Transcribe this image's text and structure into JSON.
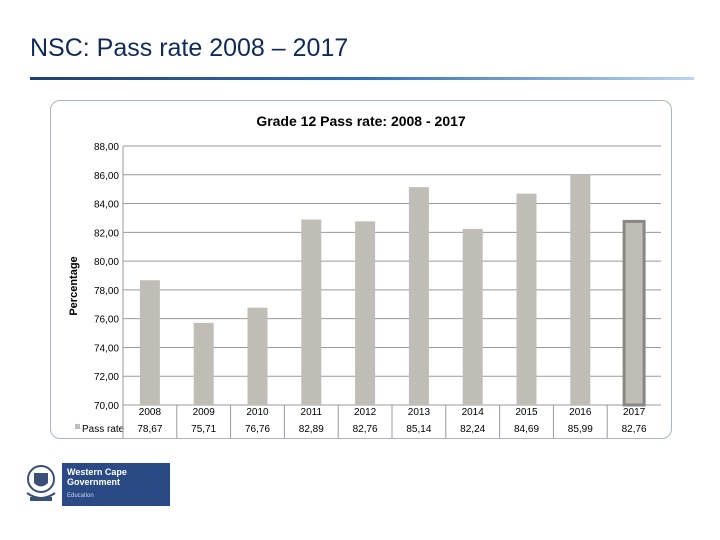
{
  "slide": {
    "title": "NSC: Pass rate 2008 – 2017"
  },
  "logo": {
    "line1": "Western Cape",
    "line2": "Government",
    "line3": "Education"
  },
  "colors": {
    "bar": "#c0bcb6",
    "highlight_border": "#8a8684",
    "title": "#0f2a5a"
  },
  "chart_data": {
    "type": "bar",
    "title": "Grade 12 Pass rate: 2008 - 2017",
    "ylabel": "Percentage",
    "xlabel": "",
    "ylim": [
      70,
      88
    ],
    "ytick_labels": [
      "88,00",
      "86,00",
      "84,00",
      "82,00",
      "80,00",
      "78,00",
      "76,00",
      "74,00",
      "72,00",
      "70,00"
    ],
    "grid": true,
    "legend": "bottom-left (data table)",
    "series": [
      {
        "name": "Pass rate",
        "values": [
          78.67,
          75.71,
          76.76,
          82.89,
          82.76,
          85.14,
          82.24,
          84.69,
          85.99,
          82.76
        ]
      }
    ],
    "categories": [
      "2008",
      "2009",
      "2010",
      "2011",
      "2012",
      "2013",
      "2014",
      "2015",
      "2016",
      "2017"
    ],
    "value_labels": [
      "78,67",
      "75,71",
      "76,76",
      "82,89",
      "82,76",
      "85,14",
      "82,24",
      "84,69",
      "85,99",
      "82,76"
    ],
    "highlighted_category": "2017"
  }
}
